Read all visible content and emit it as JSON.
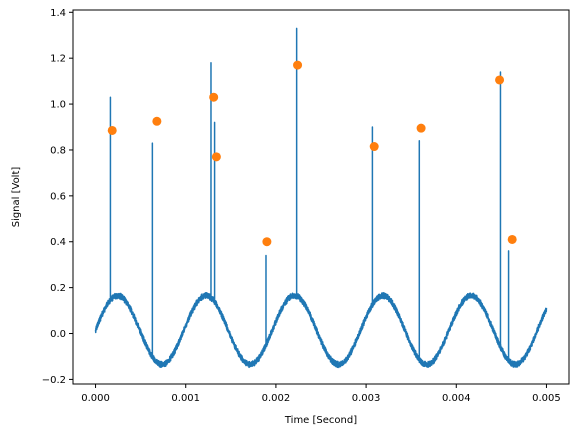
{
  "chart_data": {
    "type": "line",
    "title": "",
    "xlabel": "Time [Second]",
    "ylabel": "Signal [Volt]",
    "xlim": [
      -0.00025,
      0.00525
    ],
    "ylim": [
      -0.22,
      1.41
    ],
    "grid": false,
    "legend": "none",
    "x_ticks": [
      {
        "value": 0.0,
        "label": "0.000"
      },
      {
        "value": 0.001,
        "label": "0.001"
      },
      {
        "value": 0.002,
        "label": "0.002"
      },
      {
        "value": 0.003,
        "label": "0.003"
      },
      {
        "value": 0.004,
        "label": "0.004"
      },
      {
        "value": 0.005,
        "label": "0.005"
      }
    ],
    "y_ticks": [
      {
        "value": -0.2,
        "label": "−0.2"
      },
      {
        "value": 0.0,
        "label": "0.0"
      },
      {
        "value": 0.2,
        "label": "0.2"
      },
      {
        "value": 0.4,
        "label": "0.4"
      },
      {
        "value": 0.6,
        "label": "0.6"
      },
      {
        "value": 0.8,
        "label": "0.8"
      },
      {
        "value": 1.0,
        "label": "1.0"
      },
      {
        "value": 1.2,
        "label": "1.2"
      },
      {
        "value": 1.4,
        "label": "1.4"
      }
    ],
    "signal": {
      "color": "#1f77b4",
      "x_start": 0.0,
      "x_end": 0.005,
      "baseline_amplitude": 0.15,
      "baseline_offset": 0.015,
      "baseline_period": 0.00098,
      "baseline_phase_start": 0.0,
      "noise_band": 0.012,
      "spikes": [
        {
          "x": 0.000165,
          "peak": 1.03
        },
        {
          "x": 0.00063,
          "peak": 0.83
        },
        {
          "x": 0.00128,
          "peak": 1.18
        },
        {
          "x": 0.00132,
          "peak": 0.92
        },
        {
          "x": 0.00189,
          "peak": 0.34
        },
        {
          "x": 0.00223,
          "peak": 1.33
        },
        {
          "x": 0.00307,
          "peak": 0.9
        },
        {
          "x": 0.00359,
          "peak": 0.84
        },
        {
          "x": 0.00449,
          "peak": 1.14
        },
        {
          "x": 0.00458,
          "peak": 0.36
        }
      ]
    },
    "markers": {
      "color": "#ff7f0e",
      "points": [
        {
          "x": 0.000185,
          "y": 0.885
        },
        {
          "x": 0.00068,
          "y": 0.925
        },
        {
          "x": 0.00131,
          "y": 1.03
        },
        {
          "x": 0.00134,
          "y": 0.77
        },
        {
          "x": 0.0019,
          "y": 0.4
        },
        {
          "x": 0.00224,
          "y": 1.17
        },
        {
          "x": 0.00309,
          "y": 0.815
        },
        {
          "x": 0.00361,
          "y": 0.895
        },
        {
          "x": 0.00448,
          "y": 1.105
        },
        {
          "x": 0.00462,
          "y": 0.41
        }
      ]
    }
  }
}
